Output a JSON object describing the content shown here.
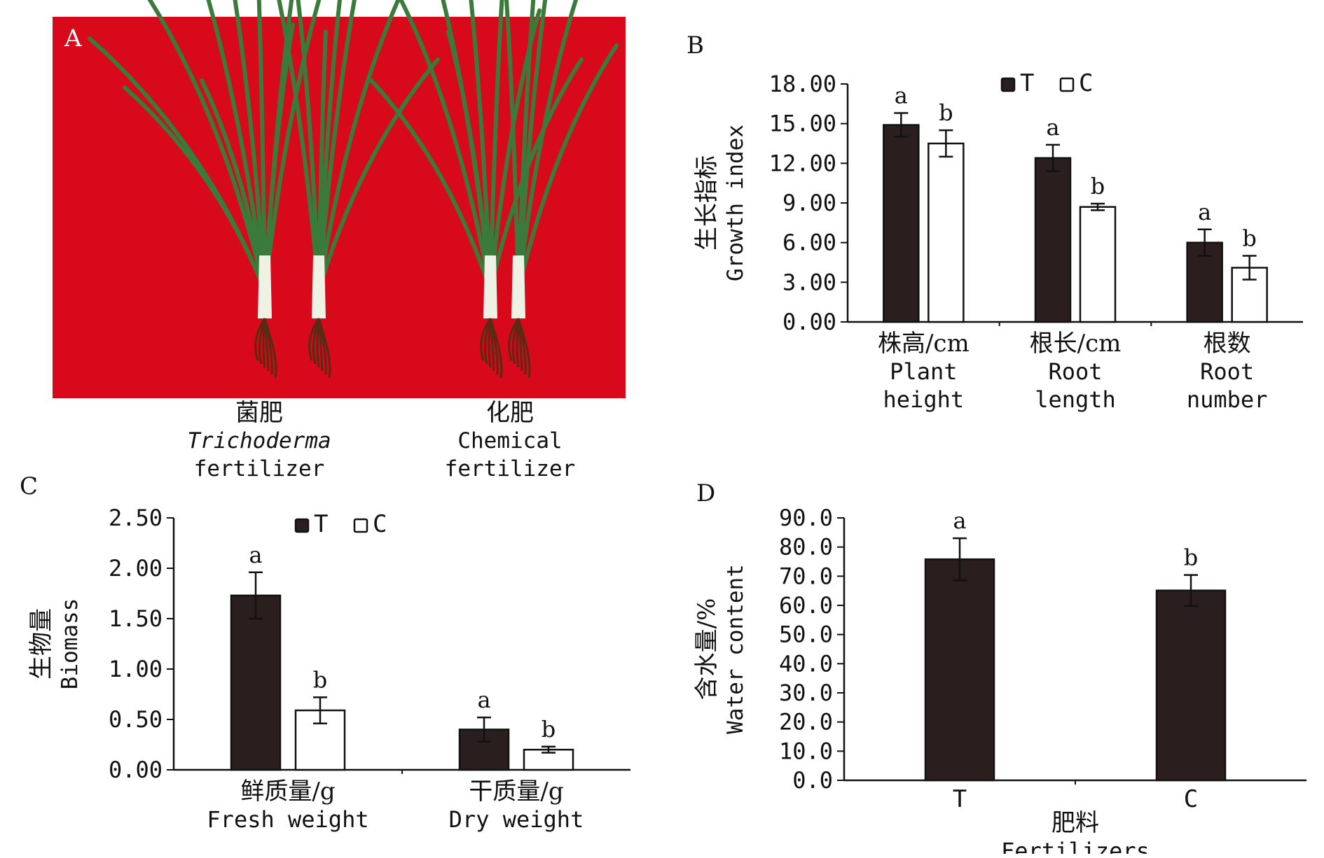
{
  "colors": {
    "T": "#2a1f1e",
    "C": "#ffffff",
    "photo_bg": "#d8091a",
    "leaf": "#3a7a3a",
    "stem": "#eef2e4"
  },
  "panelA": {
    "letter": "A",
    "captions": [
      {
        "zh": "菌肥",
        "italic": "Trichoderma",
        "en_rest": " fertilizer"
      },
      {
        "zh": "化肥",
        "italic": "",
        "en_rest": "Chemical fertilizer"
      }
    ]
  },
  "chart_data": [
    {
      "panel": "B",
      "type": "bar",
      "ylabel_zh": "生长指标",
      "ylabel_en": "Growth index",
      "ylim": [
        0,
        18
      ],
      "yticks": [
        "18.00",
        "15.00",
        "12.00",
        "9.00",
        "6.00",
        "3.00",
        "0.00"
      ],
      "legend": [
        "T",
        "C"
      ],
      "legend_position": "top-center",
      "categories": [
        {
          "zh": "株高/cm",
          "en": [
            "Plant",
            "height"
          ]
        },
        {
          "zh": "根长/cm",
          "en": [
            "Root",
            "length"
          ]
        },
        {
          "zh": "根数",
          "en": [
            "Root",
            "number"
          ]
        }
      ],
      "series": [
        {
          "name": "T",
          "values": [
            14.9,
            12.4,
            6.0
          ],
          "errors": [
            0.9,
            1.0,
            1.0
          ],
          "letters": [
            "a",
            "a",
            "a"
          ]
        },
        {
          "name": "C",
          "values": [
            13.5,
            8.7,
            4.1
          ],
          "errors": [
            1.0,
            0.25,
            0.9
          ],
          "letters": [
            "b",
            "b",
            "b"
          ]
        }
      ]
    },
    {
      "panel": "C",
      "type": "bar",
      "ylabel_zh": "生物量",
      "ylabel_en": "Biomass",
      "ylim": [
        0,
        2.5
      ],
      "yticks": [
        "2.50",
        "2.00",
        "1.50",
        "1.00",
        "0.50",
        "0.00"
      ],
      "legend": [
        "T",
        "C"
      ],
      "legend_position": "top-center",
      "categories": [
        {
          "zh": "鲜质量/g",
          "en": [
            "Fresh weight"
          ]
        },
        {
          "zh": "干质量/g",
          "en": [
            "Dry weight"
          ]
        }
      ],
      "series": [
        {
          "name": "T",
          "values": [
            1.73,
            0.4
          ],
          "errors": [
            0.23,
            0.12
          ],
          "letters": [
            "a",
            "a"
          ]
        },
        {
          "name": "C",
          "values": [
            0.59,
            0.2
          ],
          "errors": [
            0.13,
            0.03
          ],
          "letters": [
            "b",
            "b"
          ]
        }
      ]
    },
    {
      "panel": "D",
      "type": "bar",
      "ylabel_zh": "含水量/%",
      "ylabel_en": "Water content",
      "xlabel_zh": "肥料",
      "xlabel_en": "Fertilizers",
      "ylim": [
        0,
        90
      ],
      "yticks": [
        "90.0",
        "80.0",
        "70.0",
        "60.0",
        "50.0",
        "40.0",
        "30.0",
        "20.0",
        "10.0",
        "0.0"
      ],
      "categories": [
        "T",
        "C"
      ],
      "series": [
        {
          "name": "",
          "values": [
            75.8,
            65.1
          ],
          "errors": [
            7.2,
            5.3
          ],
          "letters": [
            "a",
            "b"
          ]
        }
      ]
    }
  ]
}
